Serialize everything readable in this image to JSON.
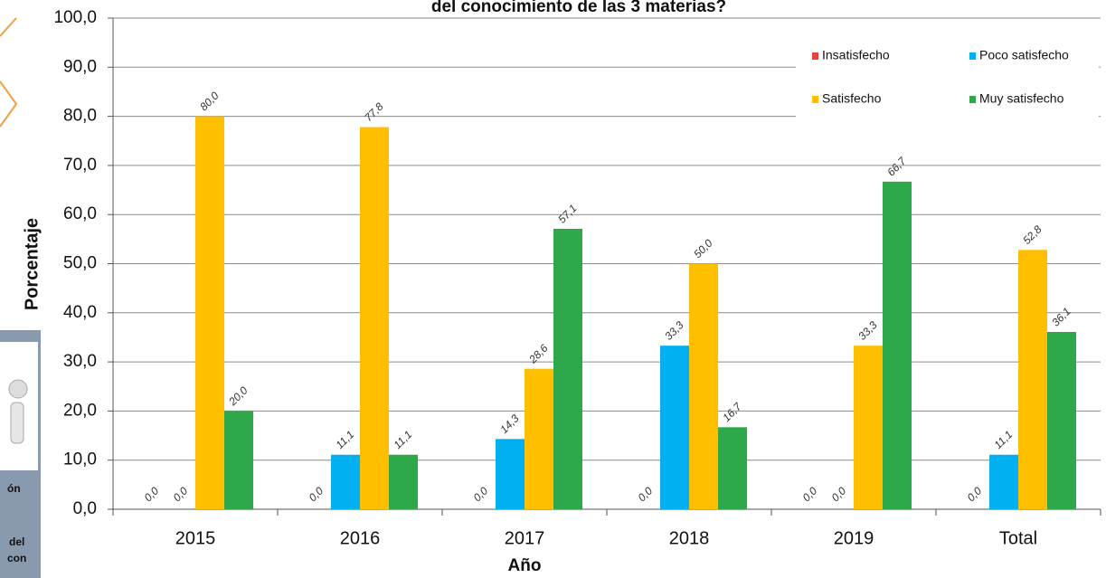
{
  "chart_data": {
    "type": "bar",
    "title": "del conocimiento de las 3 materias?",
    "x_label": "Año",
    "y_label": "Porcentaje",
    "categories": [
      "2015",
      "2016",
      "2017",
      "2018",
      "2019",
      "Total"
    ],
    "series": [
      {
        "name": "Insatisfecho",
        "color": "#e8413c",
        "values": [
          0.0,
          0.0,
          0.0,
          0.0,
          0.0,
          0.0
        ],
        "value_labels": [
          "0,0",
          "0,0",
          "0,0",
          "0,0",
          "0,0",
          "0,0"
        ]
      },
      {
        "name": "Poco satisfecho",
        "color": "#00b0f0",
        "values": [
          0.0,
          11.1,
          14.3,
          33.3,
          0.0,
          11.1
        ],
        "value_labels": [
          "0,0",
          "11,1",
          "14,3",
          "33,3",
          "0,0",
          "11,1"
        ]
      },
      {
        "name": "Satisfecho",
        "color": "#ffbf00",
        "values": [
          80.0,
          77.8,
          28.6,
          50.0,
          33.3,
          52.8
        ],
        "value_labels": [
          "80,0",
          "77,8",
          "28,6",
          "50,0",
          "33,3",
          "52,8"
        ]
      },
      {
        "name": "Muy satisfecho",
        "color": "#2ea84a",
        "values": [
          20.0,
          11.1,
          57.1,
          16.7,
          66.7,
          36.1
        ],
        "value_labels": [
          "20,0",
          "11,1",
          "57,1",
          "16,7",
          "66,7",
          "36,1"
        ]
      }
    ],
    "ylim": [
      0,
      100
    ],
    "yticks": [
      {
        "value": 0,
        "label": "0,0"
      },
      {
        "value": 10,
        "label": "10,0"
      },
      {
        "value": 20,
        "label": "20,0"
      },
      {
        "value": 30,
        "label": "30,0"
      },
      {
        "value": 40,
        "label": "40,0"
      },
      {
        "value": 50,
        "label": "50,0"
      },
      {
        "value": 60,
        "label": "60,0"
      },
      {
        "value": 70,
        "label": "70,0"
      },
      {
        "value": 80,
        "label": "80,0"
      },
      {
        "value": 90,
        "label": "90,0"
      },
      {
        "value": 100,
        "label": "100,0"
      }
    ],
    "grid": true,
    "legend": "upper right"
  },
  "side_panel": {
    "lines": [
      "ón",
      "del",
      "con"
    ]
  }
}
